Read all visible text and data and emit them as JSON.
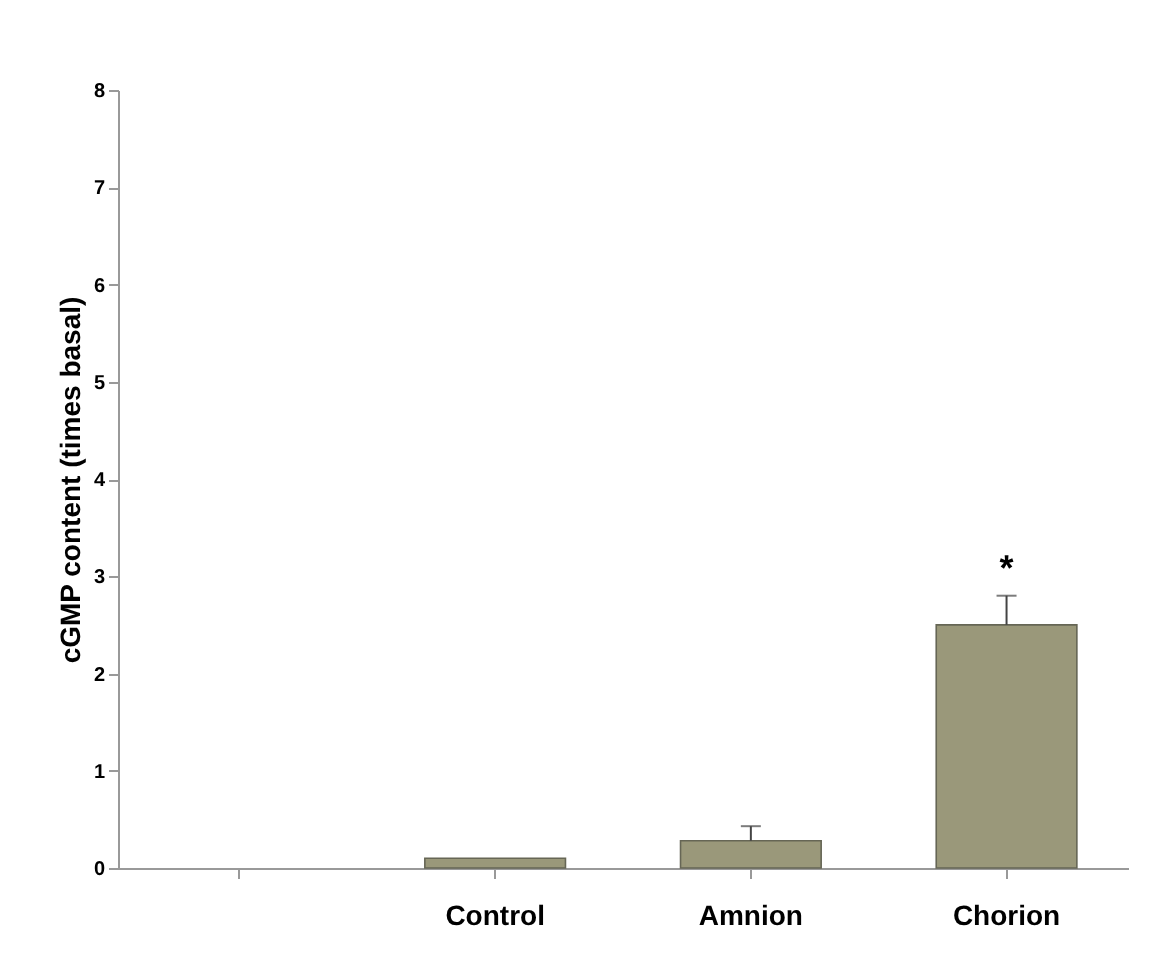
{
  "chart_data": {
    "type": "bar",
    "ylabel": "cGMP content (times basal)",
    "categories": [
      null,
      "Control",
      "Amnion",
      "Chorion"
    ],
    "values": [
      null,
      0.1,
      0.28,
      2.5
    ],
    "errors": [
      null,
      null,
      0.15,
      0.3
    ],
    "color": "#9a987a",
    "ylim": [
      0,
      8
    ],
    "yticks": [
      0,
      1,
      2,
      3,
      4,
      5,
      6,
      7,
      8
    ],
    "grid": false,
    "annotations": [
      "*"
    ]
  }
}
